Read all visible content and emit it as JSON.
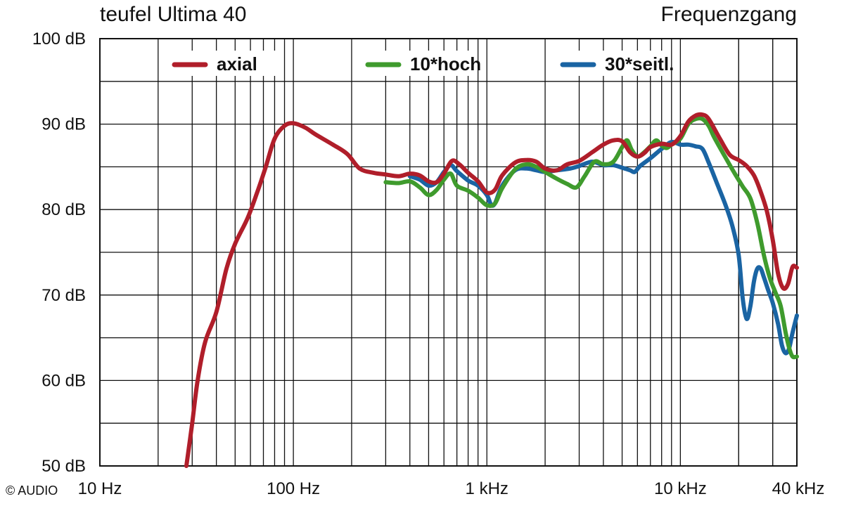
{
  "chart_data": {
    "type": "line",
    "title": "teufel Ultima 40",
    "subtitle": "Frequenzgang",
    "watermark": "© AUDIO",
    "x_scale": "log",
    "xlim": [
      10,
      40000
    ],
    "ylim": [
      50,
      100
    ],
    "grid": true,
    "legend_position": "top-inside",
    "x_ticks": [
      {
        "value": 10,
        "label": "10 Hz"
      },
      {
        "value": 100,
        "label": "100 Hz"
      },
      {
        "value": 1000,
        "label": "1 kHz"
      },
      {
        "value": 10000,
        "label": "10 kHz"
      },
      {
        "value": 40000,
        "label": "40 kHz"
      }
    ],
    "y_ticks": [
      {
        "value": 50,
        "label": "50 dB"
      },
      {
        "value": 60,
        "label": "60 dB"
      },
      {
        "value": 70,
        "label": "70 dB"
      },
      {
        "value": 80,
        "label": "80 dB"
      },
      {
        "value": 90,
        "label": "90 dB"
      },
      {
        "value": 100,
        "label": "100 dB"
      }
    ],
    "series": [
      {
        "name": "axial",
        "color": "#b01e2a",
        "points": [
          [
            28,
            50
          ],
          [
            30,
            55
          ],
          [
            32,
            60
          ],
          [
            35,
            64.5
          ],
          [
            40,
            68
          ],
          [
            45,
            73
          ],
          [
            50,
            76
          ],
          [
            58,
            79
          ],
          [
            65,
            82
          ],
          [
            72,
            85
          ],
          [
            80,
            88.3
          ],
          [
            90,
            89.8
          ],
          [
            100,
            90.1
          ],
          [
            115,
            89.6
          ],
          [
            130,
            88.8
          ],
          [
            160,
            87.6
          ],
          [
            190,
            86.5
          ],
          [
            220,
            84.8
          ],
          [
            260,
            84.3
          ],
          [
            300,
            84.1
          ],
          [
            350,
            83.9
          ],
          [
            400,
            84.2
          ],
          [
            450,
            84.0
          ],
          [
            500,
            83.3
          ],
          [
            550,
            83.2
          ],
          [
            600,
            84.2
          ],
          [
            660,
            85.7
          ],
          [
            720,
            85.3
          ],
          [
            800,
            84.3
          ],
          [
            900,
            83.3
          ],
          [
            1000,
            82.0
          ],
          [
            1100,
            82.3
          ],
          [
            1200,
            84.0
          ],
          [
            1400,
            85.5
          ],
          [
            1600,
            85.8
          ],
          [
            1800,
            85.6
          ],
          [
            2000,
            84.8
          ],
          [
            2300,
            84.6
          ],
          [
            2600,
            85.3
          ],
          [
            3000,
            85.7
          ],
          [
            3500,
            86.7
          ],
          [
            4000,
            87.6
          ],
          [
            4500,
            88.1
          ],
          [
            5000,
            88.0
          ],
          [
            5500,
            86.7
          ],
          [
            6000,
            86.2
          ],
          [
            6500,
            86.6
          ],
          [
            7000,
            87.3
          ],
          [
            8000,
            87.7
          ],
          [
            9000,
            87.6
          ],
          [
            10000,
            88.6
          ],
          [
            11000,
            90.3
          ],
          [
            12000,
            91.0
          ],
          [
            13000,
            91.1
          ],
          [
            14000,
            90.6
          ],
          [
            16000,
            88.3
          ],
          [
            18000,
            86.4
          ],
          [
            20000,
            85.8
          ],
          [
            22000,
            85.1
          ],
          [
            24000,
            84.0
          ],
          [
            26000,
            82.1
          ],
          [
            28000,
            79.8
          ],
          [
            30000,
            76.5
          ],
          [
            32000,
            72.5
          ],
          [
            34000,
            70.8
          ],
          [
            36000,
            71.3
          ],
          [
            38000,
            73.3
          ],
          [
            40000,
            73.2
          ]
        ]
      },
      {
        "name": "10*hoch",
        "color": "#3f9b2d",
        "points": [
          [
            300,
            83.2
          ],
          [
            350,
            83.1
          ],
          [
            400,
            83.3
          ],
          [
            450,
            82.6
          ],
          [
            500,
            81.7
          ],
          [
            550,
            82.3
          ],
          [
            600,
            83.5
          ],
          [
            650,
            84.2
          ],
          [
            700,
            82.8
          ],
          [
            800,
            82.2
          ],
          [
            900,
            81.4
          ],
          [
            1000,
            80.5
          ],
          [
            1100,
            80.7
          ],
          [
            1200,
            82.5
          ],
          [
            1400,
            84.7
          ],
          [
            1600,
            85.3
          ],
          [
            1800,
            85.0
          ],
          [
            2000,
            84.4
          ],
          [
            2300,
            83.6
          ],
          [
            2600,
            83.0
          ],
          [
            2900,
            82.6
          ],
          [
            3200,
            83.9
          ],
          [
            3600,
            85.6
          ],
          [
            4000,
            85.3
          ],
          [
            4500,
            85.6
          ],
          [
            5000,
            87.3
          ],
          [
            5300,
            88.1
          ],
          [
            5600,
            87.0
          ],
          [
            6000,
            86.2
          ],
          [
            6500,
            86.7
          ],
          [
            7000,
            87.4
          ],
          [
            7500,
            88.1
          ],
          [
            8000,
            87.5
          ],
          [
            8500,
            87.2
          ],
          [
            9000,
            87.6
          ],
          [
            10000,
            88.3
          ],
          [
            11000,
            90.0
          ],
          [
            12000,
            90.6
          ],
          [
            13000,
            90.6
          ],
          [
            14000,
            89.8
          ],
          [
            15000,
            88.4
          ],
          [
            17000,
            86.2
          ],
          [
            19000,
            84.3
          ],
          [
            21000,
            82.7
          ],
          [
            23000,
            81.3
          ],
          [
            25000,
            78.4
          ],
          [
            27000,
            74.7
          ],
          [
            29000,
            72.0
          ],
          [
            31000,
            70.3
          ],
          [
            33000,
            68.7
          ],
          [
            35000,
            65.6
          ],
          [
            36500,
            63.8
          ],
          [
            38000,
            62.8
          ],
          [
            40000,
            62.8
          ]
        ]
      },
      {
        "name": "30*seitl.",
        "color": "#1a64a3",
        "points": [
          [
            400,
            83.9
          ],
          [
            450,
            83.5
          ],
          [
            500,
            82.8
          ],
          [
            550,
            83.2
          ],
          [
            600,
            84.4
          ],
          [
            650,
            85.2
          ],
          [
            700,
            84.5
          ],
          [
            800,
            83.4
          ],
          [
            900,
            82.8
          ],
          [
            1000,
            81.7
          ],
          [
            1050,
            80.6
          ],
          [
            1100,
            80.7
          ],
          [
            1200,
            82.8
          ],
          [
            1400,
            84.6
          ],
          [
            1600,
            84.8
          ],
          [
            1800,
            84.6
          ],
          [
            2000,
            84.4
          ],
          [
            2300,
            84.6
          ],
          [
            2700,
            84.8
          ],
          [
            3000,
            85.1
          ],
          [
            3500,
            85.6
          ],
          [
            4000,
            85.2
          ],
          [
            4500,
            85.2
          ],
          [
            5000,
            84.9
          ],
          [
            5500,
            84.6
          ],
          [
            5800,
            84.4
          ],
          [
            6200,
            85.1
          ],
          [
            7000,
            86.0
          ],
          [
            8000,
            87.1
          ],
          [
            9000,
            87.9
          ],
          [
            10000,
            87.6
          ],
          [
            11000,
            87.6
          ],
          [
            12000,
            87.4
          ],
          [
            13000,
            87.1
          ],
          [
            14000,
            85.5
          ],
          [
            15500,
            83.0
          ],
          [
            17000,
            80.7
          ],
          [
            18500,
            78.2
          ],
          [
            20000,
            74.7
          ],
          [
            21000,
            69.6
          ],
          [
            22000,
            67.2
          ],
          [
            23000,
            68.7
          ],
          [
            24000,
            71.6
          ],
          [
            25000,
            73.1
          ],
          [
            26000,
            73.1
          ],
          [
            27000,
            72.1
          ],
          [
            28500,
            70.5
          ],
          [
            30000,
            69.1
          ],
          [
            32000,
            66.6
          ],
          [
            33500,
            64.1
          ],
          [
            35000,
            63.2
          ],
          [
            36500,
            63.8
          ],
          [
            38000,
            65.6
          ],
          [
            40000,
            67.6
          ]
        ]
      }
    ]
  }
}
